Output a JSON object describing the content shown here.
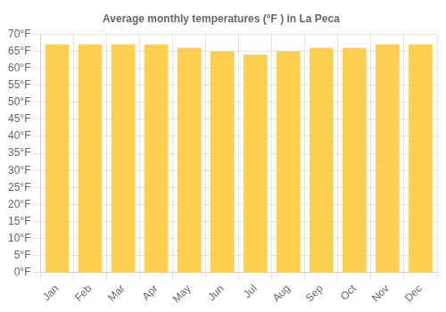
{
  "chart_data": {
    "type": "bar",
    "title": "Average monthly temperatures (°F ) in La Peca",
    "categories": [
      "Jan",
      "Feb",
      "Mar",
      "Apr",
      "May",
      "Jun",
      "Jul",
      "Aug",
      "Sep",
      "Oct",
      "Nov",
      "Dec"
    ],
    "values": [
      67,
      67,
      67,
      67,
      66,
      65,
      64,
      65,
      66,
      66,
      67,
      67
    ],
    "color": "#FFD050",
    "ylim": [
      0,
      70
    ],
    "yticks": [
      {
        "value": 0,
        "label": "0°F"
      },
      {
        "value": 5,
        "label": "5°F"
      },
      {
        "value": 10,
        "label": "10°F"
      },
      {
        "value": 15,
        "label": "15°F"
      },
      {
        "value": 20,
        "label": "20°F"
      },
      {
        "value": 25,
        "label": "25°F"
      },
      {
        "value": 30,
        "label": "30°F"
      },
      {
        "value": 35,
        "label": "35°F"
      },
      {
        "value": 40,
        "label": "40°F"
      },
      {
        "value": 45,
        "label": "45°F"
      },
      {
        "value": 50,
        "label": "50°F"
      },
      {
        "value": 55,
        "label": "55°F"
      },
      {
        "value": 60,
        "label": "60°F"
      },
      {
        "value": 65,
        "label": "65°F"
      },
      {
        "value": 70,
        "label": "70°F"
      }
    ],
    "grid": true
  }
}
